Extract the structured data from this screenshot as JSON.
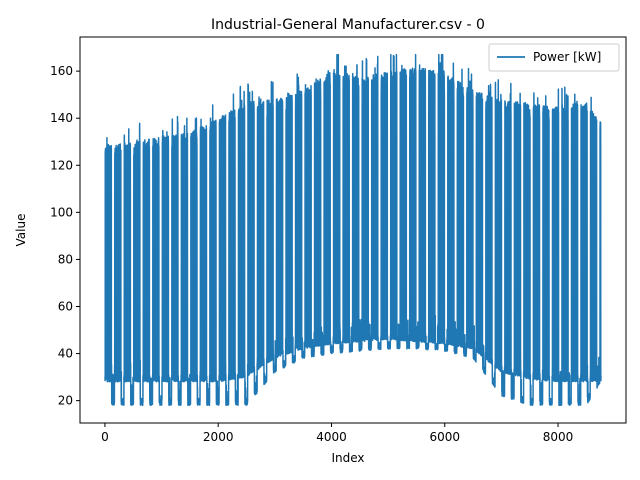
{
  "chart_data": {
    "type": "line",
    "title": "Industrial-General Manufacturer.csv - 0",
    "xlabel": "Index",
    "ylabel": "Value",
    "xlim": [
      -440,
      9200
    ],
    "ylim": [
      10.5,
      174.5
    ],
    "xticks": [
      0,
      2000,
      4000,
      6000,
      8000
    ],
    "yticks": [
      20,
      40,
      60,
      80,
      100,
      120,
      140,
      160
    ],
    "grid": false,
    "legend_position": "top-right",
    "series": [
      {
        "name": "Power [kW]",
        "color": "#1f77b4",
        "x_start": 0,
        "x_end": 8759,
        "x_step": 1,
        "pattern": "daily cycle (24 samples per day); 5 working days at high load, 2 weekend days at low load",
        "envelope": [
          {
            "x": 0,
            "day_peak": 126,
            "night_base": 28,
            "weekend_base": 18
          },
          {
            "x": 1000,
            "day_peak": 130,
            "night_base": 28,
            "weekend_base": 18
          },
          {
            "x": 1500,
            "day_peak": 132,
            "night_base": 28,
            "weekend_base": 18
          },
          {
            "x": 2000,
            "day_peak": 138,
            "night_base": 28,
            "weekend_base": 18
          },
          {
            "x": 2500,
            "day_peak": 145,
            "night_base": 30,
            "weekend_base": 18
          },
          {
            "x": 3000,
            "day_peak": 146,
            "night_base": 38,
            "weekend_base": 32
          },
          {
            "x": 3500,
            "day_peak": 150,
            "night_base": 42,
            "weekend_base": 38
          },
          {
            "x": 4000,
            "day_peak": 158,
            "night_base": 44,
            "weekend_base": 40
          },
          {
            "x": 4500,
            "day_peak": 155,
            "night_base": 45,
            "weekend_base": 41
          },
          {
            "x": 5000,
            "day_peak": 158,
            "night_base": 46,
            "weekend_base": 42
          },
          {
            "x": 5500,
            "day_peak": 160,
            "night_base": 45,
            "weekend_base": 42
          },
          {
            "x": 6000,
            "day_peak": 157,
            "night_base": 44,
            "weekend_base": 41
          },
          {
            "x": 6500,
            "day_peak": 150,
            "night_base": 42,
            "weekend_base": 38
          },
          {
            "x": 7000,
            "day_peak": 146,
            "night_base": 32,
            "weekend_base": 22
          },
          {
            "x": 7500,
            "day_peak": 144,
            "night_base": 29,
            "weekend_base": 18
          },
          {
            "x": 8000,
            "day_peak": 143,
            "night_base": 28,
            "weekend_base": 18
          },
          {
            "x": 8500,
            "day_peak": 145,
            "night_base": 28,
            "weekend_base": 18
          },
          {
            "x": 8759,
            "day_peak": 136,
            "night_base": 28,
            "weekend_base": 28
          }
        ],
        "global_min": 17,
        "global_max": 167
      }
    ]
  }
}
